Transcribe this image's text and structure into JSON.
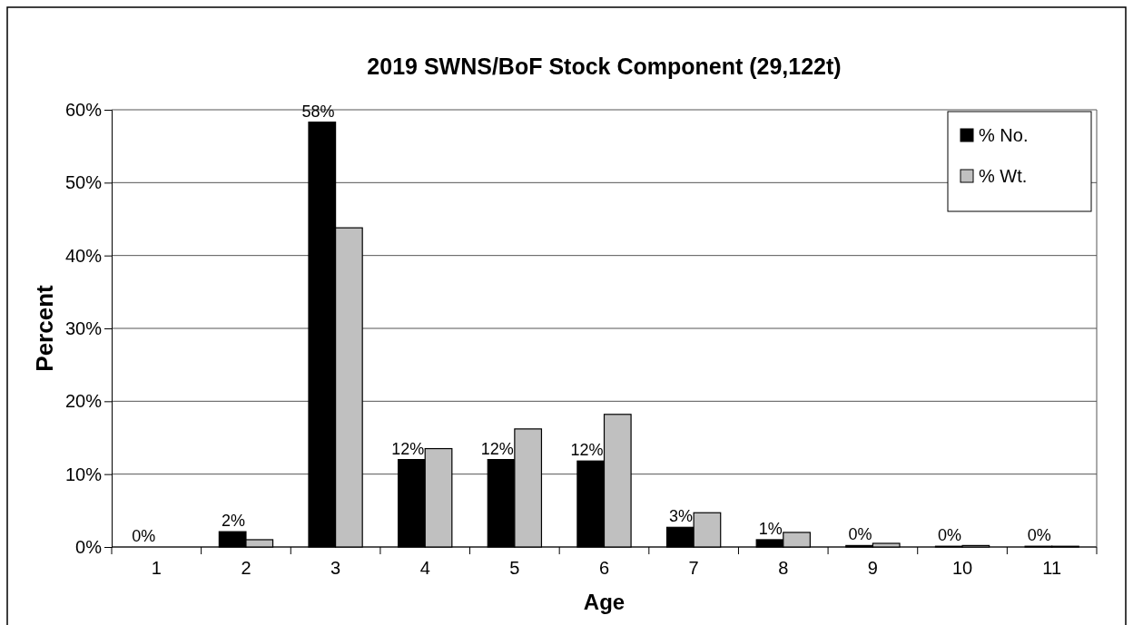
{
  "chart_data": {
    "type": "bar",
    "title": "2019 SWNS/BoF Stock Component (29,122t)",
    "xlabel": "Age",
    "ylabel": "Percent",
    "categories": [
      "1",
      "2",
      "3",
      "4",
      "5",
      "6",
      "7",
      "8",
      "9",
      "10",
      "11"
    ],
    "series": [
      {
        "name": "% No.",
        "color": "#000000",
        "values": [
          0,
          2.1,
          58.3,
          12.0,
          12.0,
          11.8,
          2.7,
          1.0,
          0.2,
          0.1,
          0.1
        ],
        "value_labels": [
          "0%",
          "2%",
          "58%",
          "12%",
          "12%",
          "12%",
          "3%",
          "1%",
          "0%",
          "0%",
          "0%"
        ]
      },
      {
        "name": "% Wt.",
        "color": "#c0c0c0",
        "values": [
          0,
          1.0,
          43.8,
          13.5,
          16.2,
          18.2,
          4.7,
          2.0,
          0.5,
          0.2,
          0.1
        ]
      }
    ],
    "ylim": [
      0,
      60
    ],
    "yticks": [
      {
        "value": 0,
        "label": "0%"
      },
      {
        "value": 10,
        "label": "10%"
      },
      {
        "value": 20,
        "label": "20%"
      },
      {
        "value": 30,
        "label": "30%"
      },
      {
        "value": 40,
        "label": "40%"
      },
      {
        "value": 50,
        "label": "50%"
      },
      {
        "value": 60,
        "label": "60%"
      }
    ],
    "grid": "y",
    "legend": "top right"
  }
}
